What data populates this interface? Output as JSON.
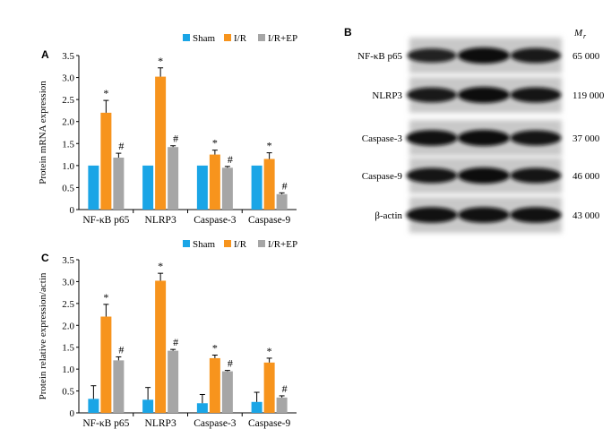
{
  "colors": {
    "sham": "#1aa5e6",
    "ir": "#f7941d",
    "irep": "#a6a6a6"
  },
  "legend": [
    "Sham",
    "I/R",
    "I/R+EP"
  ],
  "chart_data": [
    {
      "panel": "A",
      "type": "bar",
      "ylabel": "Protein mRNA expression",
      "ylim": [
        0,
        3.5
      ],
      "yticks": [
        "0",
        "0.5",
        "1.0",
        "1.5",
        "2.0",
        "2.5",
        "3.0",
        "3.5"
      ],
      "categories": [
        "NF-κB p65",
        "NLRP3",
        "Caspase-3",
        "Caspase-9"
      ],
      "series": [
        {
          "name": "Sham",
          "values": [
            1.0,
            1.0,
            1.0,
            1.0
          ],
          "errors": [
            0,
            0,
            0,
            0
          ],
          "marks": [
            "",
            "",
            "",
            ""
          ]
        },
        {
          "name": "I/R",
          "values": [
            2.2,
            3.02,
            1.25,
            1.15
          ],
          "errors": [
            0.28,
            0.2,
            0.1,
            0.14
          ],
          "marks": [
            "*",
            "*",
            "*",
            "*"
          ]
        },
        {
          "name": "I/R+EP",
          "values": [
            1.18,
            1.42,
            0.95,
            0.35
          ],
          "errors": [
            0.1,
            0.03,
            0.03,
            0.03
          ],
          "marks": [
            "#",
            "#",
            "#",
            "#"
          ]
        }
      ]
    },
    {
      "panel": "C",
      "type": "bar",
      "ylabel": "Protein relative expression/actin",
      "ylim": [
        0,
        3.5
      ],
      "yticks": [
        "0",
        "0.5",
        "1.0",
        "1.5",
        "2.0",
        "2.5",
        "3.0",
        "3.5"
      ],
      "categories": [
        "NF-κB p65",
        "NLRP3",
        "Caspase-3",
        "Caspase-9"
      ],
      "series": [
        {
          "name": "Sham",
          "values": [
            0.32,
            0.3,
            0.22,
            0.25
          ],
          "errors": [
            0.3,
            0.28,
            0.2,
            0.22
          ],
          "marks": [
            "",
            "",
            "",
            ""
          ]
        },
        {
          "name": "I/R",
          "values": [
            2.2,
            3.02,
            1.25,
            1.15
          ],
          "errors": [
            0.28,
            0.17,
            0.07,
            0.1
          ],
          "marks": [
            "*",
            "*",
            "*",
            "*"
          ]
        },
        {
          "name": "I/R+EP",
          "values": [
            1.2,
            1.42,
            0.95,
            0.35
          ],
          "errors": [
            0.08,
            0.03,
            0.02,
            0.04
          ],
          "marks": [
            "#",
            "#",
            "#",
            "#"
          ]
        }
      ]
    }
  ],
  "blot": {
    "panel": "B",
    "mr_label": "M",
    "mr_sub": "r",
    "rows": [
      {
        "protein": "NF-κB p65",
        "mr": "65 000",
        "bands": [
          0.75,
          1.0,
          0.85
        ]
      },
      {
        "protein": "NLRP3",
        "mr": "119 000",
        "bands": [
          0.85,
          1.0,
          0.9
        ]
      },
      {
        "protein": "Caspase-3",
        "mr": "37 000",
        "bands": [
          0.95,
          1.0,
          0.9
        ]
      },
      {
        "protein": "Caspase-9",
        "mr": "46 000",
        "bands": [
          0.9,
          1.0,
          0.9
        ]
      },
      {
        "protein": "β-actin",
        "mr": "43 000",
        "bands": [
          0.95,
          0.95,
          0.95
        ]
      }
    ]
  }
}
